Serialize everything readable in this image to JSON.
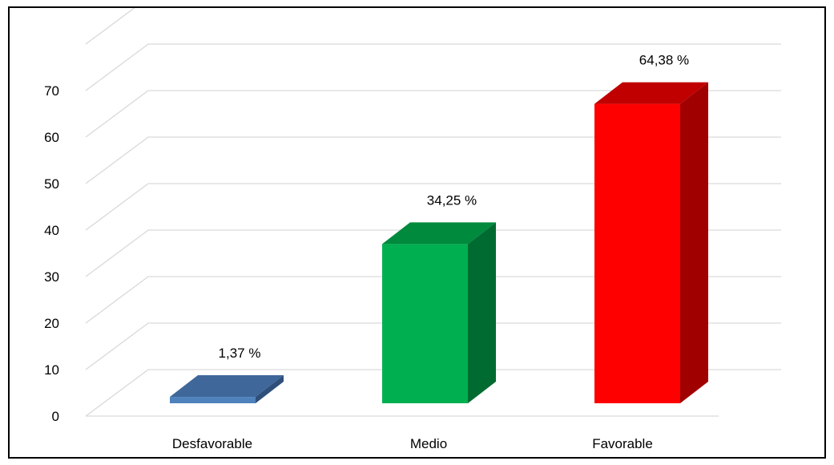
{
  "chart_data": {
    "type": "bar",
    "categories": [
      "Desfavorable",
      "Medio",
      "Favorable"
    ],
    "values": [
      1.37,
      34.25,
      64.38
    ],
    "value_labels": [
      "1,37 %",
      "34,25 %",
      "64,38 %"
    ],
    "y_ticks": [
      0,
      10,
      20,
      30,
      40,
      50,
      60,
      70
    ],
    "ylim": [
      0,
      80
    ],
    "grid": true,
    "style": "3d-column",
    "title": "",
    "xlabel": "",
    "ylabel": "",
    "colors": [
      {
        "front": "#4F81BD",
        "top": "#3F679A",
        "side": "#2E4F7A"
      },
      {
        "front": "#00B050",
        "top": "#008A3E",
        "side": "#006B30"
      },
      {
        "front": "#FF0000",
        "top": "#C00000",
        "side": "#A00000"
      }
    ]
  }
}
